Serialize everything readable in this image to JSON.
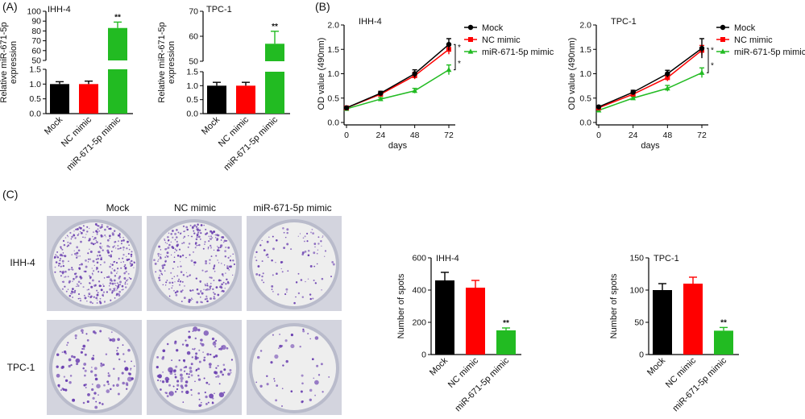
{
  "colors": {
    "mock": "#000000",
    "nc": "#ff0000",
    "mir": "#22bb22",
    "plate_bg": "#d3d4de",
    "dish": "#eeeeee",
    "colony": "#6a3fb0"
  },
  "panels": {
    "a": "(A)",
    "b": "(B)",
    "c": "(C)"
  },
  "colony_assay": {
    "columns": [
      "Mock",
      "NC mimic",
      "miR-671-5p mimic"
    ],
    "rows": [
      "IHH-4",
      "TPC-1"
    ],
    "density": [
      [
        1.0,
        0.85,
        0.25
      ],
      [
        0.22,
        0.3,
        0.09
      ]
    ]
  },
  "chart_data": [
    {
      "id": "a1",
      "type": "bar",
      "title": "IHH-4",
      "ylabel": "Relative miR-671-5p\nexpression",
      "categories": [
        "Mock",
        "NC mimic",
        "miR-671-5p mimic"
      ],
      "values": [
        1.0,
        1.0,
        83
      ],
      "errors": [
        0.08,
        0.1,
        6
      ],
      "significance": [
        "",
        "",
        "**"
      ],
      "broken_axis": {
        "lower": [
          0,
          1.5
        ],
        "upper": [
          50,
          100
        ]
      },
      "yticks_lower": [
        "0.0",
        "0.5",
        "1.0",
        "1.5"
      ],
      "yticks_upper": [
        "50",
        "60",
        "70",
        "80",
        "90",
        "100"
      ]
    },
    {
      "id": "a2",
      "type": "bar",
      "title": "TPC-1",
      "ylabel": "Relative miR-671-5p\nexpression",
      "categories": [
        "Mock",
        "NC mimic",
        "miR-671-5p mimic"
      ],
      "values": [
        1.0,
        1.0,
        57
      ],
      "errors": [
        0.12,
        0.12,
        5
      ],
      "significance": [
        "",
        "",
        "**"
      ],
      "broken_axis": {
        "lower": [
          0,
          1.5
        ],
        "upper": [
          50,
          70
        ]
      },
      "yticks_lower": [
        "0.0",
        "0.5",
        "1.0",
        "1.5"
      ],
      "yticks_upper": [
        "50",
        "60",
        "70"
      ]
    },
    {
      "id": "b1",
      "type": "line",
      "title": "IHH-4",
      "xlabel": "days",
      "ylabel": "OD value (490nm)",
      "x": [
        0,
        24,
        48,
        72
      ],
      "ylim": [
        0,
        2.0
      ],
      "xticks": [
        "0",
        "24",
        "48",
        "72"
      ],
      "yticks": [
        "0.0",
        "0.5",
        "1.0",
        "1.5",
        "2.0"
      ],
      "series": [
        {
          "name": "Mock",
          "values": [
            0.3,
            0.6,
            1.0,
            1.6
          ],
          "errors": [
            0.02,
            0.04,
            0.08,
            0.12
          ]
        },
        {
          "name": "NC mimic",
          "values": [
            0.3,
            0.58,
            0.96,
            1.5
          ],
          "errors": [
            0.02,
            0.04,
            0.07,
            0.1
          ]
        },
        {
          "name": "miR-671-5p mimic",
          "values": [
            0.28,
            0.48,
            0.65,
            1.08
          ],
          "errors": [
            0.02,
            0.03,
            0.05,
            0.1
          ]
        }
      ],
      "significance": [
        "*",
        "*"
      ]
    },
    {
      "id": "b2",
      "type": "line",
      "title": "TPC-1",
      "xlabel": "days",
      "ylabel": "OD value (490nm)",
      "x": [
        0,
        24,
        48,
        72
      ],
      "ylim": [
        0,
        2.0
      ],
      "xticks": [
        "0",
        "24",
        "48",
        "72"
      ],
      "yticks": [
        "0.0",
        "0.5",
        "1.0",
        "1.5",
        "2.0"
      ],
      "series": [
        {
          "name": "Mock",
          "values": [
            0.32,
            0.62,
            1.0,
            1.52
          ],
          "errors": [
            0.02,
            0.04,
            0.07,
            0.2
          ]
        },
        {
          "name": "NC mimic",
          "values": [
            0.3,
            0.58,
            0.92,
            1.48
          ],
          "errors": [
            0.02,
            0.04,
            0.07,
            0.1
          ]
        },
        {
          "name": "miR-671-5p mimic",
          "values": [
            0.25,
            0.5,
            0.7,
            1.02
          ],
          "errors": [
            0.02,
            0.03,
            0.06,
            0.1
          ]
        }
      ],
      "significance": [
        "*",
        "*"
      ]
    },
    {
      "id": "c1",
      "type": "bar",
      "title": "IHH-4",
      "ylabel": "Number of spots",
      "categories": [
        "Mock",
        "NC mimic",
        "miR-671-5p mimic"
      ],
      "values": [
        460,
        415,
        150
      ],
      "errors": [
        50,
        45,
        15
      ],
      "significance": [
        "",
        "",
        "**"
      ],
      "ylim": [
        0,
        600
      ],
      "yticks": [
        "0",
        "200",
        "400",
        "600"
      ]
    },
    {
      "id": "c2",
      "type": "bar",
      "title": "TPC-1",
      "ylabel": "Number of spots",
      "categories": [
        "Mock",
        "NC mimic",
        "miR-671-5p mimic"
      ],
      "values": [
        100,
        110,
        37
      ],
      "errors": [
        10,
        10,
        5
      ],
      "significance": [
        "",
        "",
        "**"
      ],
      "ylim": [
        0,
        150
      ],
      "yticks": [
        "0",
        "50",
        "100",
        "150"
      ]
    }
  ]
}
